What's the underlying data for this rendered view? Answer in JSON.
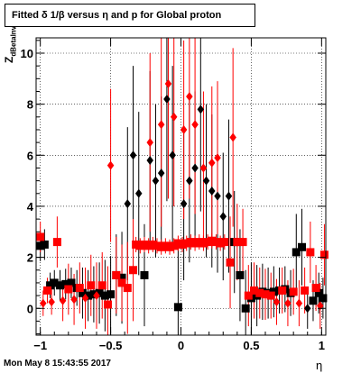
{
  "title": "Fitted δ 1/β versus η and p for Global proton",
  "footer": "Mon May  8 15:43:55 2017",
  "chart_data": {
    "type": "scatter",
    "title": "Fitted δ 1/β versus η and p for Global proton",
    "xlabel": "η",
    "ylabel_main": "Z",
    "ylabel_sub": "dBetaInv",
    "xlim": [
      -1.03,
      1.03
    ],
    "ylim": [
      -1.05,
      10.6
    ],
    "grid": true,
    "xticks": [
      -1,
      -0.5,
      0,
      0.5,
      1
    ],
    "xtick_labels": [
      "−1",
      "−0.5",
      "0",
      "0.5",
      "1"
    ],
    "yticks": [
      0,
      2,
      4,
      6,
      8,
      10
    ],
    "ytick_labels": [
      "0",
      "2",
      "4",
      "6",
      "8",
      "10"
    ],
    "series": [
      {
        "color": "#000000",
        "points": [
          {
            "x": -1.0,
            "y": 2.45,
            "err": 0.6,
            "marker": "square"
          },
          {
            "x": -0.97,
            "y": 2.5,
            "err": 0.6,
            "marker": "square"
          },
          {
            "x": -0.93,
            "y": 0.9,
            "err": 0.5,
            "marker": "square"
          },
          {
            "x": -0.9,
            "y": 1.0,
            "err": 0.5,
            "marker": "square"
          },
          {
            "x": -0.86,
            "y": 0.9,
            "err": 0.6,
            "marker": "square"
          },
          {
            "x": -0.82,
            "y": 0.95,
            "err": 0.6,
            "marker": "square"
          },
          {
            "x": -0.78,
            "y": 1.0,
            "err": 0.6,
            "marker": "square"
          },
          {
            "x": -0.74,
            "y": 0.8,
            "err": 0.7,
            "marker": "square"
          },
          {
            "x": -0.7,
            "y": 0.6,
            "err": 1.0,
            "marker": "square"
          },
          {
            "x": -0.66,
            "y": 0.5,
            "err": 1.0,
            "marker": "square"
          },
          {
            "x": -0.62,
            "y": 0.55,
            "err": 1.1,
            "marker": "square"
          },
          {
            "x": -0.58,
            "y": 0.6,
            "err": 1.2,
            "marker": "square"
          },
          {
            "x": -0.54,
            "y": 0.5,
            "err": 1.4,
            "marker": "square"
          },
          {
            "x": -0.5,
            "y": 0.55,
            "err": 1.5,
            "marker": "square"
          },
          {
            "x": -0.46,
            "y": 1.3,
            "err": 1.6,
            "marker": "square"
          },
          {
            "x": -0.42,
            "y": 1.2,
            "err": 1.8,
            "marker": "square"
          },
          {
            "x": -0.38,
            "y": 4.1,
            "err": 3.0,
            "marker": "diamond"
          },
          {
            "x": -0.34,
            "y": 6.0,
            "err": 3.5,
            "marker": "diamond"
          },
          {
            "x": -0.3,
            "y": 4.5,
            "err": 3.2,
            "marker": "diamond"
          },
          {
            "x": -0.26,
            "y": 1.3,
            "err": 2.0,
            "marker": "square"
          },
          {
            "x": -0.22,
            "y": 5.8,
            "err": 3.5,
            "marker": "diamond"
          },
          {
            "x": -0.18,
            "y": 5.0,
            "err": 3.0,
            "marker": "diamond"
          },
          {
            "x": -0.14,
            "y": 5.3,
            "err": 3.0,
            "marker": "diamond"
          },
          {
            "x": -0.1,
            "y": 8.2,
            "err": 4.0,
            "marker": "diamond"
          },
          {
            "x": -0.06,
            "y": 6.0,
            "err": 3.5,
            "marker": "diamond"
          },
          {
            "x": -0.02,
            "y": 0.05,
            "err": 2.5,
            "marker": "square"
          },
          {
            "x": 0.02,
            "y": 4.1,
            "err": 3.0,
            "marker": "diamond"
          },
          {
            "x": 0.06,
            "y": 5.0,
            "err": 3.2,
            "marker": "diamond"
          },
          {
            "x": 0.1,
            "y": 5.5,
            "err": 3.0,
            "marker": "diamond"
          },
          {
            "x": 0.14,
            "y": 7.8,
            "err": 4.0,
            "marker": "diamond"
          },
          {
            "x": 0.18,
            "y": 5.0,
            "err": 3.0,
            "marker": "diamond"
          },
          {
            "x": 0.22,
            "y": 4.6,
            "err": 3.0,
            "marker": "diamond"
          },
          {
            "x": 0.26,
            "y": 4.4,
            "err": 3.0,
            "marker": "diamond"
          },
          {
            "x": 0.3,
            "y": 3.6,
            "err": 2.5,
            "marker": "diamond"
          },
          {
            "x": 0.34,
            "y": 4.4,
            "err": 3.0,
            "marker": "diamond"
          },
          {
            "x": 0.38,
            "y": 2.6,
            "err": 2.0,
            "marker": "square"
          },
          {
            "x": 0.42,
            "y": 1.3,
            "err": 1.8,
            "marker": "square"
          },
          {
            "x": 0.46,
            "y": 0.0,
            "err": 1.5,
            "marker": "square"
          },
          {
            "x": 0.5,
            "y": 0.4,
            "err": 1.4,
            "marker": "square"
          },
          {
            "x": 0.54,
            "y": 0.5,
            "err": 1.2,
            "marker": "square"
          },
          {
            "x": 0.58,
            "y": 0.65,
            "err": 1.1,
            "marker": "square"
          },
          {
            "x": 0.62,
            "y": 0.6,
            "err": 1.0,
            "marker": "square"
          },
          {
            "x": 0.66,
            "y": 0.65,
            "err": 1.0,
            "marker": "square"
          },
          {
            "x": 0.7,
            "y": 0.7,
            "err": 0.9,
            "marker": "square"
          },
          {
            "x": 0.74,
            "y": 0.75,
            "err": 0.9,
            "marker": "square"
          },
          {
            "x": 0.78,
            "y": 0.6,
            "err": 0.9,
            "marker": "square"
          },
          {
            "x": 0.82,
            "y": 2.2,
            "err": 1.5,
            "marker": "square"
          },
          {
            "x": 0.86,
            "y": 2.4,
            "err": 1.5,
            "marker": "square"
          },
          {
            "x": 0.9,
            "y": 0.0,
            "err": 0.8,
            "marker": "diamond"
          },
          {
            "x": 0.94,
            "y": 0.3,
            "err": 0.8,
            "marker": "square"
          },
          {
            "x": 0.98,
            "y": 0.6,
            "err": 0.8,
            "marker": "square"
          },
          {
            "x": 1.01,
            "y": 0.4,
            "err": 0.8,
            "marker": "square"
          }
        ]
      },
      {
        "color": "#ff0000",
        "points": [
          {
            "x": -1.0,
            "y": 2.8,
            "err": 0.6,
            "marker": "square"
          },
          {
            "x": -0.98,
            "y": 0.2,
            "err": 0.5,
            "marker": "diamond"
          },
          {
            "x": -0.95,
            "y": 0.7,
            "err": 0.5,
            "marker": "square"
          },
          {
            "x": -0.92,
            "y": 0.25,
            "err": 0.5,
            "marker": "diamond"
          },
          {
            "x": -0.88,
            "y": 2.6,
            "err": 1.0,
            "marker": "square"
          },
          {
            "x": -0.84,
            "y": 0.3,
            "err": 0.8,
            "marker": "diamond"
          },
          {
            "x": -0.8,
            "y": 0.75,
            "err": 1.0,
            "marker": "square"
          },
          {
            "x": -0.76,
            "y": 0.35,
            "err": 1.0,
            "marker": "diamond"
          },
          {
            "x": -0.72,
            "y": 0.8,
            "err": 1.0,
            "marker": "square"
          },
          {
            "x": -0.68,
            "y": 0.4,
            "err": 1.2,
            "marker": "diamond"
          },
          {
            "x": -0.64,
            "y": 0.9,
            "err": 1.2,
            "marker": "square"
          },
          {
            "x": -0.6,
            "y": 0.5,
            "err": 1.3,
            "marker": "diamond"
          },
          {
            "x": -0.56,
            "y": 0.9,
            "err": 1.3,
            "marker": "square"
          },
          {
            "x": -0.52,
            "y": 0.15,
            "err": 1.5,
            "marker": "square"
          },
          {
            "x": -0.5,
            "y": 5.6,
            "err": 3.0,
            "marker": "diamond"
          },
          {
            "x": -0.46,
            "y": 1.3,
            "err": 1.5,
            "marker": "square"
          },
          {
            "x": -0.42,
            "y": 1.0,
            "err": 1.5,
            "marker": "square"
          },
          {
            "x": -0.38,
            "y": 0.8,
            "err": 1.8,
            "marker": "square"
          },
          {
            "x": -0.34,
            "y": 1.5,
            "err": 2.0,
            "marker": "square"
          },
          {
            "x": -0.32,
            "y": 2.5,
            "err": 0.3,
            "marker": "square"
          },
          {
            "x": -0.29,
            "y": 2.45,
            "err": 0.3,
            "marker": "square"
          },
          {
            "x": -0.26,
            "y": 2.5,
            "err": 0.3,
            "marker": "square"
          },
          {
            "x": -0.23,
            "y": 2.45,
            "err": 0.3,
            "marker": "square"
          },
          {
            "x": -0.2,
            "y": 2.5,
            "err": 0.3,
            "marker": "square"
          },
          {
            "x": -0.17,
            "y": 2.45,
            "err": 0.3,
            "marker": "square"
          },
          {
            "x": -0.14,
            "y": 2.4,
            "err": 0.3,
            "marker": "square"
          },
          {
            "x": -0.11,
            "y": 2.45,
            "err": 0.3,
            "marker": "square"
          },
          {
            "x": -0.08,
            "y": 2.4,
            "err": 0.3,
            "marker": "square"
          },
          {
            "x": -0.05,
            "y": 2.45,
            "err": 0.3,
            "marker": "square"
          },
          {
            "x": -0.22,
            "y": 6.5,
            "err": 3.5,
            "marker": "diamond"
          },
          {
            "x": -0.14,
            "y": 7.2,
            "err": 4.0,
            "marker": "diamond"
          },
          {
            "x": -0.09,
            "y": 8.8,
            "err": 4.5,
            "marker": "diamond"
          },
          {
            "x": -0.05,
            "y": 7.5,
            "err": 3.5,
            "marker": "diamond"
          },
          {
            "x": -0.02,
            "y": 2.55,
            "err": 0.3,
            "marker": "square"
          },
          {
            "x": 0.01,
            "y": 2.5,
            "err": 0.3,
            "marker": "square"
          },
          {
            "x": 0.04,
            "y": 2.55,
            "err": 0.3,
            "marker": "square"
          },
          {
            "x": 0.07,
            "y": 2.6,
            "err": 0.3,
            "marker": "square"
          },
          {
            "x": 0.1,
            "y": 2.55,
            "err": 0.3,
            "marker": "square"
          },
          {
            "x": 0.13,
            "y": 2.6,
            "err": 0.3,
            "marker": "square"
          },
          {
            "x": 0.16,
            "y": 2.55,
            "err": 0.3,
            "marker": "square"
          },
          {
            "x": 0.19,
            "y": 2.6,
            "err": 0.3,
            "marker": "square"
          },
          {
            "x": 0.22,
            "y": 2.65,
            "err": 0.3,
            "marker": "square"
          },
          {
            "x": 0.25,
            "y": 2.6,
            "err": 0.3,
            "marker": "square"
          },
          {
            "x": 0.28,
            "y": 2.55,
            "err": 0.3,
            "marker": "square"
          },
          {
            "x": 0.31,
            "y": 2.6,
            "err": 0.3,
            "marker": "square"
          },
          {
            "x": 0.02,
            "y": 7.0,
            "err": 3.5,
            "marker": "diamond"
          },
          {
            "x": 0.06,
            "y": 8.3,
            "err": 4.0,
            "marker": "diamond"
          },
          {
            "x": 0.1,
            "y": 7.2,
            "err": 3.5,
            "marker": "diamond"
          },
          {
            "x": 0.16,
            "y": 5.5,
            "err": 3.0,
            "marker": "diamond"
          },
          {
            "x": 0.22,
            "y": 5.7,
            "err": 3.0,
            "marker": "diamond"
          },
          {
            "x": 0.26,
            "y": 5.9,
            "err": 3.0,
            "marker": "diamond"
          },
          {
            "x": 0.35,
            "y": 1.8,
            "err": 1.8,
            "marker": "square"
          },
          {
            "x": 0.37,
            "y": 6.7,
            "err": 3.5,
            "marker": "diamond"
          },
          {
            "x": 0.4,
            "y": 2.6,
            "err": 1.5,
            "marker": "square"
          },
          {
            "x": 0.44,
            "y": 2.6,
            "err": 1.3,
            "marker": "square"
          },
          {
            "x": 0.48,
            "y": 0.5,
            "err": 1.2,
            "marker": "square"
          },
          {
            "x": 0.52,
            "y": 0.7,
            "err": 1.1,
            "marker": "square"
          },
          {
            "x": 0.56,
            "y": 0.6,
            "err": 1.0,
            "marker": "square"
          },
          {
            "x": 0.6,
            "y": 0.55,
            "err": 1.0,
            "marker": "square"
          },
          {
            "x": 0.64,
            "y": 0.5,
            "err": 0.9,
            "marker": "square"
          },
          {
            "x": 0.68,
            "y": 0.25,
            "err": 0.9,
            "marker": "diamond"
          },
          {
            "x": 0.72,
            "y": 0.7,
            "err": 0.9,
            "marker": "square"
          },
          {
            "x": 0.76,
            "y": 0.2,
            "err": 0.9,
            "marker": "diamond"
          },
          {
            "x": 0.8,
            "y": 0.65,
            "err": 0.9,
            "marker": "square"
          },
          {
            "x": 0.84,
            "y": 0.2,
            "err": 0.9,
            "marker": "diamond"
          },
          {
            "x": 0.88,
            "y": 0.7,
            "err": 0.9,
            "marker": "square"
          },
          {
            "x": 0.92,
            "y": 2.2,
            "err": 1.2,
            "marker": "square"
          },
          {
            "x": 0.96,
            "y": 0.8,
            "err": 0.9,
            "marker": "square"
          },
          {
            "x": 0.99,
            "y": 0.1,
            "err": 0.9,
            "marker": "diamond"
          },
          {
            "x": 1.02,
            "y": 2.1,
            "err": 1.2,
            "marker": "square"
          }
        ]
      }
    ]
  }
}
